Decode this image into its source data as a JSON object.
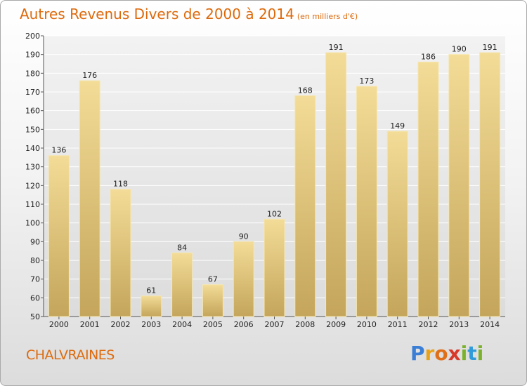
{
  "title": "Autres Revenus Divers de 2000 à 2014",
  "unit": "(en milliers d'€)",
  "commune": "CHALVRAINES",
  "logo": {
    "letters": [
      {
        "char": "P",
        "color": "#3a7fd5"
      },
      {
        "char": "r",
        "color": "#e8a21a"
      },
      {
        "char": "o",
        "color": "#e06f19"
      },
      {
        "char": "x",
        "color": "#d83a2a"
      },
      {
        "char": "i",
        "color": "#7cb22b"
      },
      {
        "char": "t",
        "color": "#2f9bd8"
      },
      {
        "char": "i",
        "color": "#7cb22b"
      }
    ]
  },
  "chart_data": {
    "type": "bar",
    "categories": [
      "2000",
      "2001",
      "2002",
      "2003",
      "2004",
      "2005",
      "2006",
      "2007",
      "2008",
      "2009",
      "2010",
      "2011",
      "2012",
      "2013",
      "2014"
    ],
    "values": [
      136,
      176,
      118,
      61,
      84,
      67,
      90,
      102,
      168,
      191,
      173,
      149,
      186,
      190,
      191
    ],
    "ylim": [
      50,
      200
    ],
    "yticks": [
      50,
      60,
      70,
      80,
      90,
      100,
      110,
      120,
      130,
      140,
      150,
      160,
      170,
      180,
      190,
      200
    ],
    "grid": true,
    "bar_color": "#e6cb7f"
  }
}
